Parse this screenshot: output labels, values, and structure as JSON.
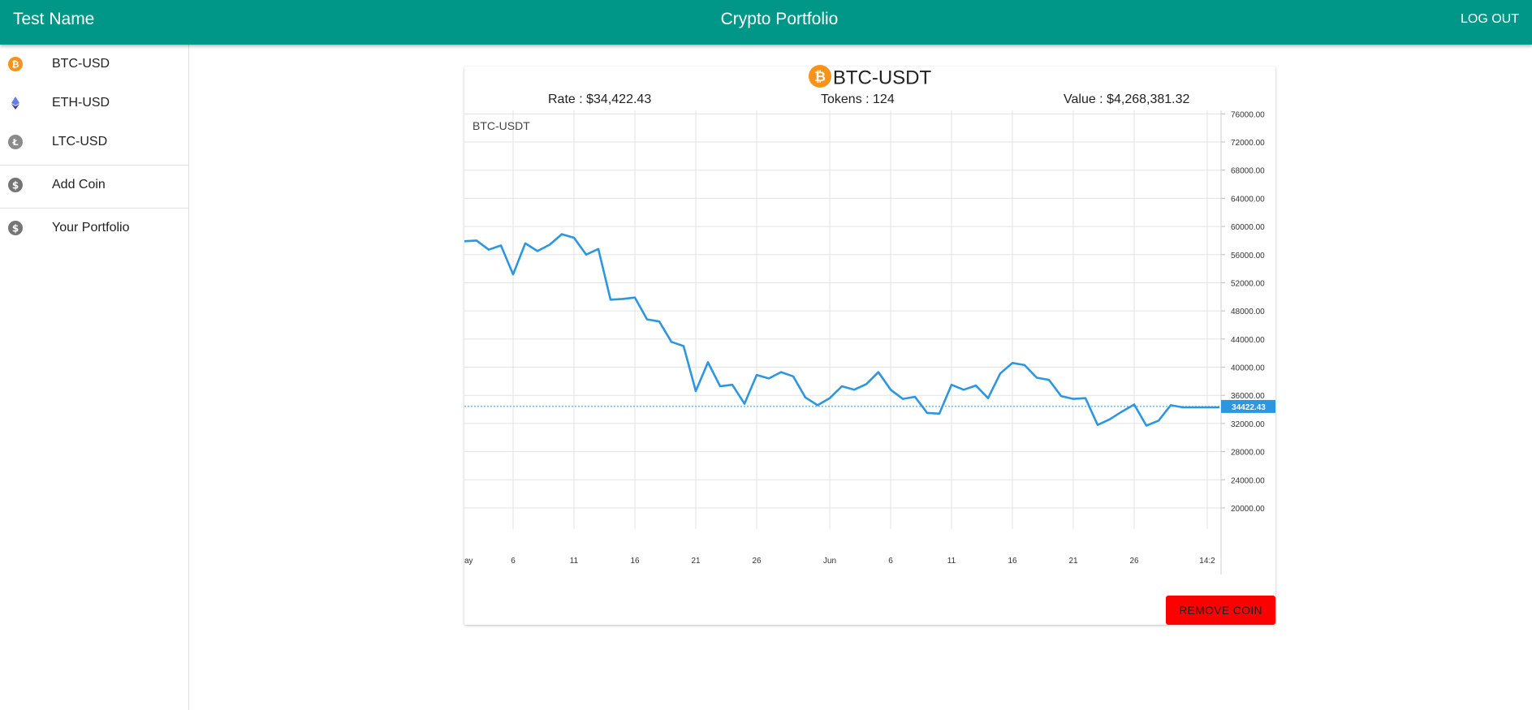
{
  "appbar": {
    "user_name": "Test Name",
    "title": "Crypto Portfolio",
    "logout_label": "LOG OUT"
  },
  "sidebar": {
    "coins": [
      {
        "label": "BTC-USD",
        "icon": "bitcoin-icon",
        "color": "#f7931a"
      },
      {
        "label": "ETH-USD",
        "icon": "ethereum-icon",
        "color": "#627eea"
      },
      {
        "label": "LTC-USD",
        "icon": "litecoin-icon",
        "color": "#8a8a8a"
      }
    ],
    "add_coin_label": "Add Coin",
    "portfolio_label": "Your Portfolio"
  },
  "card": {
    "symbol": "BTC-USDT",
    "rate": "Rate : $34,422.43",
    "tokens": "Tokens : 124",
    "value": "Value : $4,268,381.32",
    "remove_label": "REMOVE COIN"
  },
  "colors": {
    "appbar": "#009688",
    "line": "#2d96e0",
    "remove": "#ff0000",
    "bitcoin": "#f7931a"
  },
  "chart_data": {
    "type": "line",
    "title": "BTC-USDT",
    "series": [
      {
        "name": "BTC-USDT",
        "values": [
          57900,
          58000,
          56700,
          57300,
          53200,
          57600,
          56500,
          57400,
          58900,
          58400,
          56000,
          56800,
          49600,
          49700,
          49900,
          46800,
          46500,
          43600,
          43000,
          36600,
          40700,
          37300,
          37500,
          34800,
          38900,
          38400,
          39300,
          38700,
          35700,
          34600,
          35600,
          37300,
          36800,
          37600,
          39300,
          36800,
          35500,
          35800,
          33500,
          33400,
          37500,
          36800,
          37400,
          35600,
          39100,
          40600,
          40300,
          38500,
          38200,
          35900,
          35500,
          35600,
          31800,
          32600,
          33700,
          34700,
          31700,
          32400,
          34600,
          34300,
          34300,
          34300,
          34300
        ]
      }
    ],
    "x_start_label": "ay",
    "x_labels": [
      "6",
      "11",
      "16",
      "21",
      "26",
      "Jun",
      "6",
      "11",
      "16",
      "21",
      "26",
      "14:2"
    ],
    "x_label_index": [
      4,
      9,
      14,
      19,
      24,
      30,
      35,
      40,
      45,
      50,
      55,
      61
    ],
    "ylim": [
      17000,
      76500
    ],
    "yticks": [
      "76000.00",
      "72000.00",
      "68000.00",
      "64000.00",
      "60000.00",
      "56000.00",
      "52000.00",
      "48000.00",
      "44000.00",
      "40000.00",
      "36000.00",
      "32000.00",
      "28000.00",
      "24000.00",
      "20000.00"
    ],
    "ytick_values": [
      76000,
      72000,
      68000,
      64000,
      60000,
      56000,
      52000,
      48000,
      44000,
      40000,
      36000,
      32000,
      28000,
      24000,
      20000
    ],
    "current_value": 34422.43,
    "current_label": "34422.43",
    "grid": true,
    "legend": "none"
  }
}
